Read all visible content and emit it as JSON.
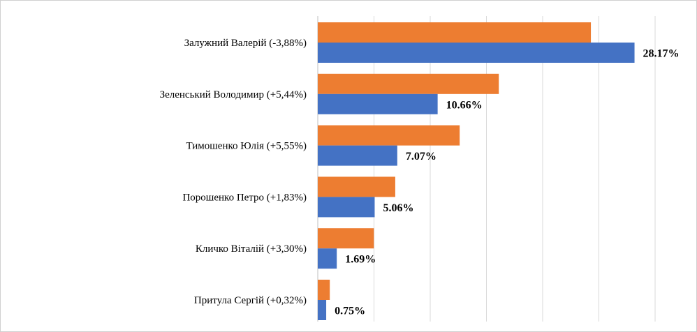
{
  "chart_data": {
    "type": "bar",
    "orientation": "horizontal",
    "categories": [
      "Залужний Валерій (-3,88%)",
      "Зеленський Володимир (+5,44%)",
      "Тимошенко Юлія (+5,55%)",
      "Порошенко Петро (+1,83%)",
      "Кличко Віталій (+3,30%)",
      "Притула Сергій (+0,32%)"
    ],
    "series": [
      {
        "color": "#ed7d31",
        "values": [
          24.29,
          16.1,
          12.62,
          6.89,
          4.99,
          1.07
        ]
      },
      {
        "color": "#4472c4",
        "values": [
          28.17,
          10.66,
          7.07,
          5.06,
          1.69,
          0.75
        ],
        "labels": [
          "28.17%",
          "10.66%",
          "7.07%",
          "5.06%",
          "1.69%",
          "0.75%"
        ]
      }
    ],
    "xlim": [
      0,
      30
    ],
    "grid": true,
    "legend": "none"
  }
}
